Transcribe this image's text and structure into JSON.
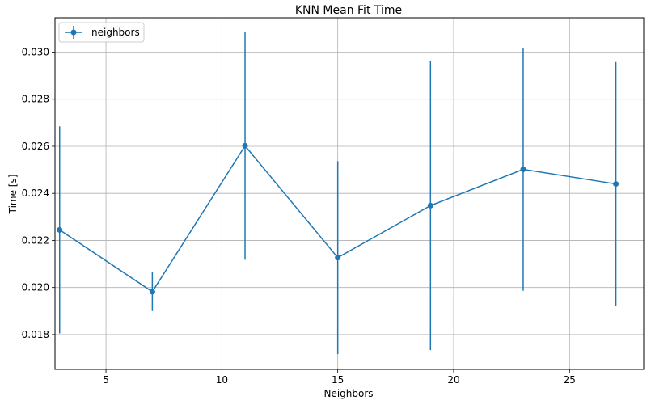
{
  "chart_data": {
    "type": "line",
    "title": "KNN Mean Fit Time",
    "xlabel": "Neighbors",
    "ylabel": "Time [s]",
    "xlim": [
      2.8,
      28.2
    ],
    "ylim": [
      0.01652,
      0.03146
    ],
    "xticks": [
      5,
      10,
      15,
      20,
      25
    ],
    "xtick_labels": [
      "5",
      "10",
      "15",
      "20",
      "25"
    ],
    "yticks": [
      0.018,
      0.02,
      0.022,
      0.024,
      0.026,
      0.028,
      0.03
    ],
    "ytick_labels": [
      "0.018",
      "0.020",
      "0.022",
      "0.024",
      "0.026",
      "0.028",
      "0.030"
    ],
    "grid": true,
    "legend": {
      "position": "top-left"
    },
    "series": [
      {
        "name": "neighbors",
        "color": "#1f77b4",
        "x": [
          3,
          7,
          11,
          15,
          19,
          23,
          27
        ],
        "y": [
          0.02245,
          0.01982,
          0.02602,
          0.02127,
          0.02348,
          0.02502,
          0.0244
        ],
        "err": [
          0.0044,
          0.00082,
          0.00484,
          0.0041,
          0.00614,
          0.00516,
          0.00518
        ]
      }
    ]
  }
}
